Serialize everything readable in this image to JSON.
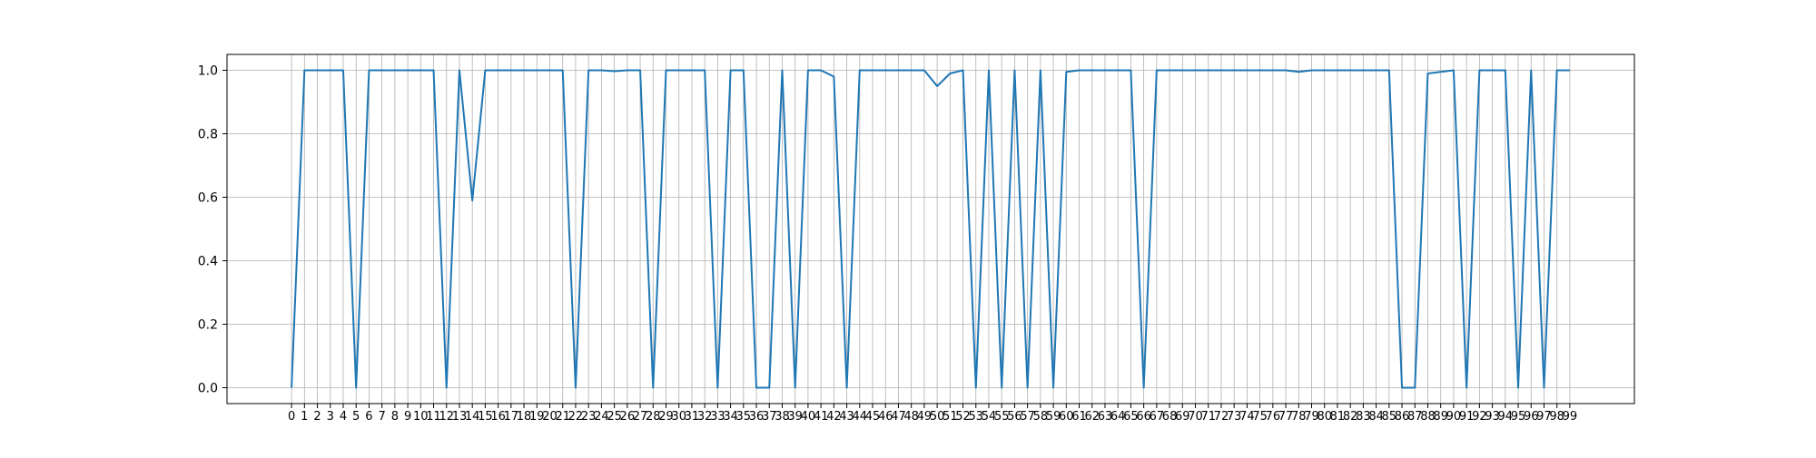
{
  "chart_data": {
    "type": "line",
    "x_tick_labels": [
      "0",
      "1",
      "2",
      "3",
      "4",
      "5",
      "6",
      "7",
      "8",
      "9",
      "10",
      "11",
      "12",
      "13",
      "14",
      "15",
      "16",
      "17",
      "18",
      "19",
      "20",
      "21",
      "22",
      "23",
      "24",
      "25",
      "26",
      "27",
      "28",
      "29",
      "30",
      "31",
      "32",
      "33",
      "34",
      "35",
      "36",
      "37",
      "38",
      "39",
      "40",
      "41",
      "42",
      "43",
      "44",
      "45",
      "46",
      "47",
      "48",
      "49",
      "50",
      "51",
      "52",
      "53",
      "54",
      "55",
      "56",
      "57",
      "58",
      "59",
      "60",
      "61",
      "62",
      "63",
      "64",
      "65",
      "66",
      "67",
      "68",
      "69",
      "70",
      "71",
      "72",
      "73",
      "74",
      "75",
      "76",
      "77",
      "78",
      "79",
      "80",
      "81",
      "82",
      "83",
      "84",
      "85",
      "86",
      "87",
      "88",
      "89",
      "90",
      "91",
      "92",
      "93",
      "94",
      "95",
      "96",
      "97",
      "98",
      "99"
    ],
    "values": [
      0,
      1,
      1,
      1,
      1,
      0,
      1,
      1,
      1,
      1,
      1,
      1,
      0,
      1,
      0.59,
      1,
      1,
      1,
      1,
      1,
      1,
      1,
      0,
      1,
      1,
      0.997,
      1,
      1,
      0,
      1,
      1,
      1,
      1,
      0,
      1,
      1,
      0,
      0,
      1,
      0,
      1,
      1,
      0.98,
      0,
      1,
      1,
      1,
      1,
      1,
      1,
      0.95,
      0.99,
      1,
      0,
      1,
      0,
      1,
      0,
      1,
      0,
      0.995,
      1,
      1,
      1,
      1,
      1,
      0,
      1,
      1,
      1,
      1,
      1,
      1,
      1,
      1,
      1,
      1,
      1,
      0.995,
      1,
      1,
      1,
      1,
      1,
      1,
      1,
      0,
      0,
      0.99,
      0.995,
      1,
      0,
      1,
      1,
      1,
      0,
      1,
      0,
      1,
      1
    ],
    "y_ticks": [
      0.0,
      0.2,
      0.4,
      0.6,
      0.8,
      1.0
    ],
    "y_tick_labels": [
      "0.0",
      "0.2",
      "0.4",
      "0.6",
      "0.8",
      "1.0"
    ],
    "ylim": [
      -0.05,
      1.05
    ],
    "xlim": [
      -5,
      104
    ],
    "grid": true,
    "line_color": "#1f77b4",
    "grid_color": "#b0b0b0"
  }
}
